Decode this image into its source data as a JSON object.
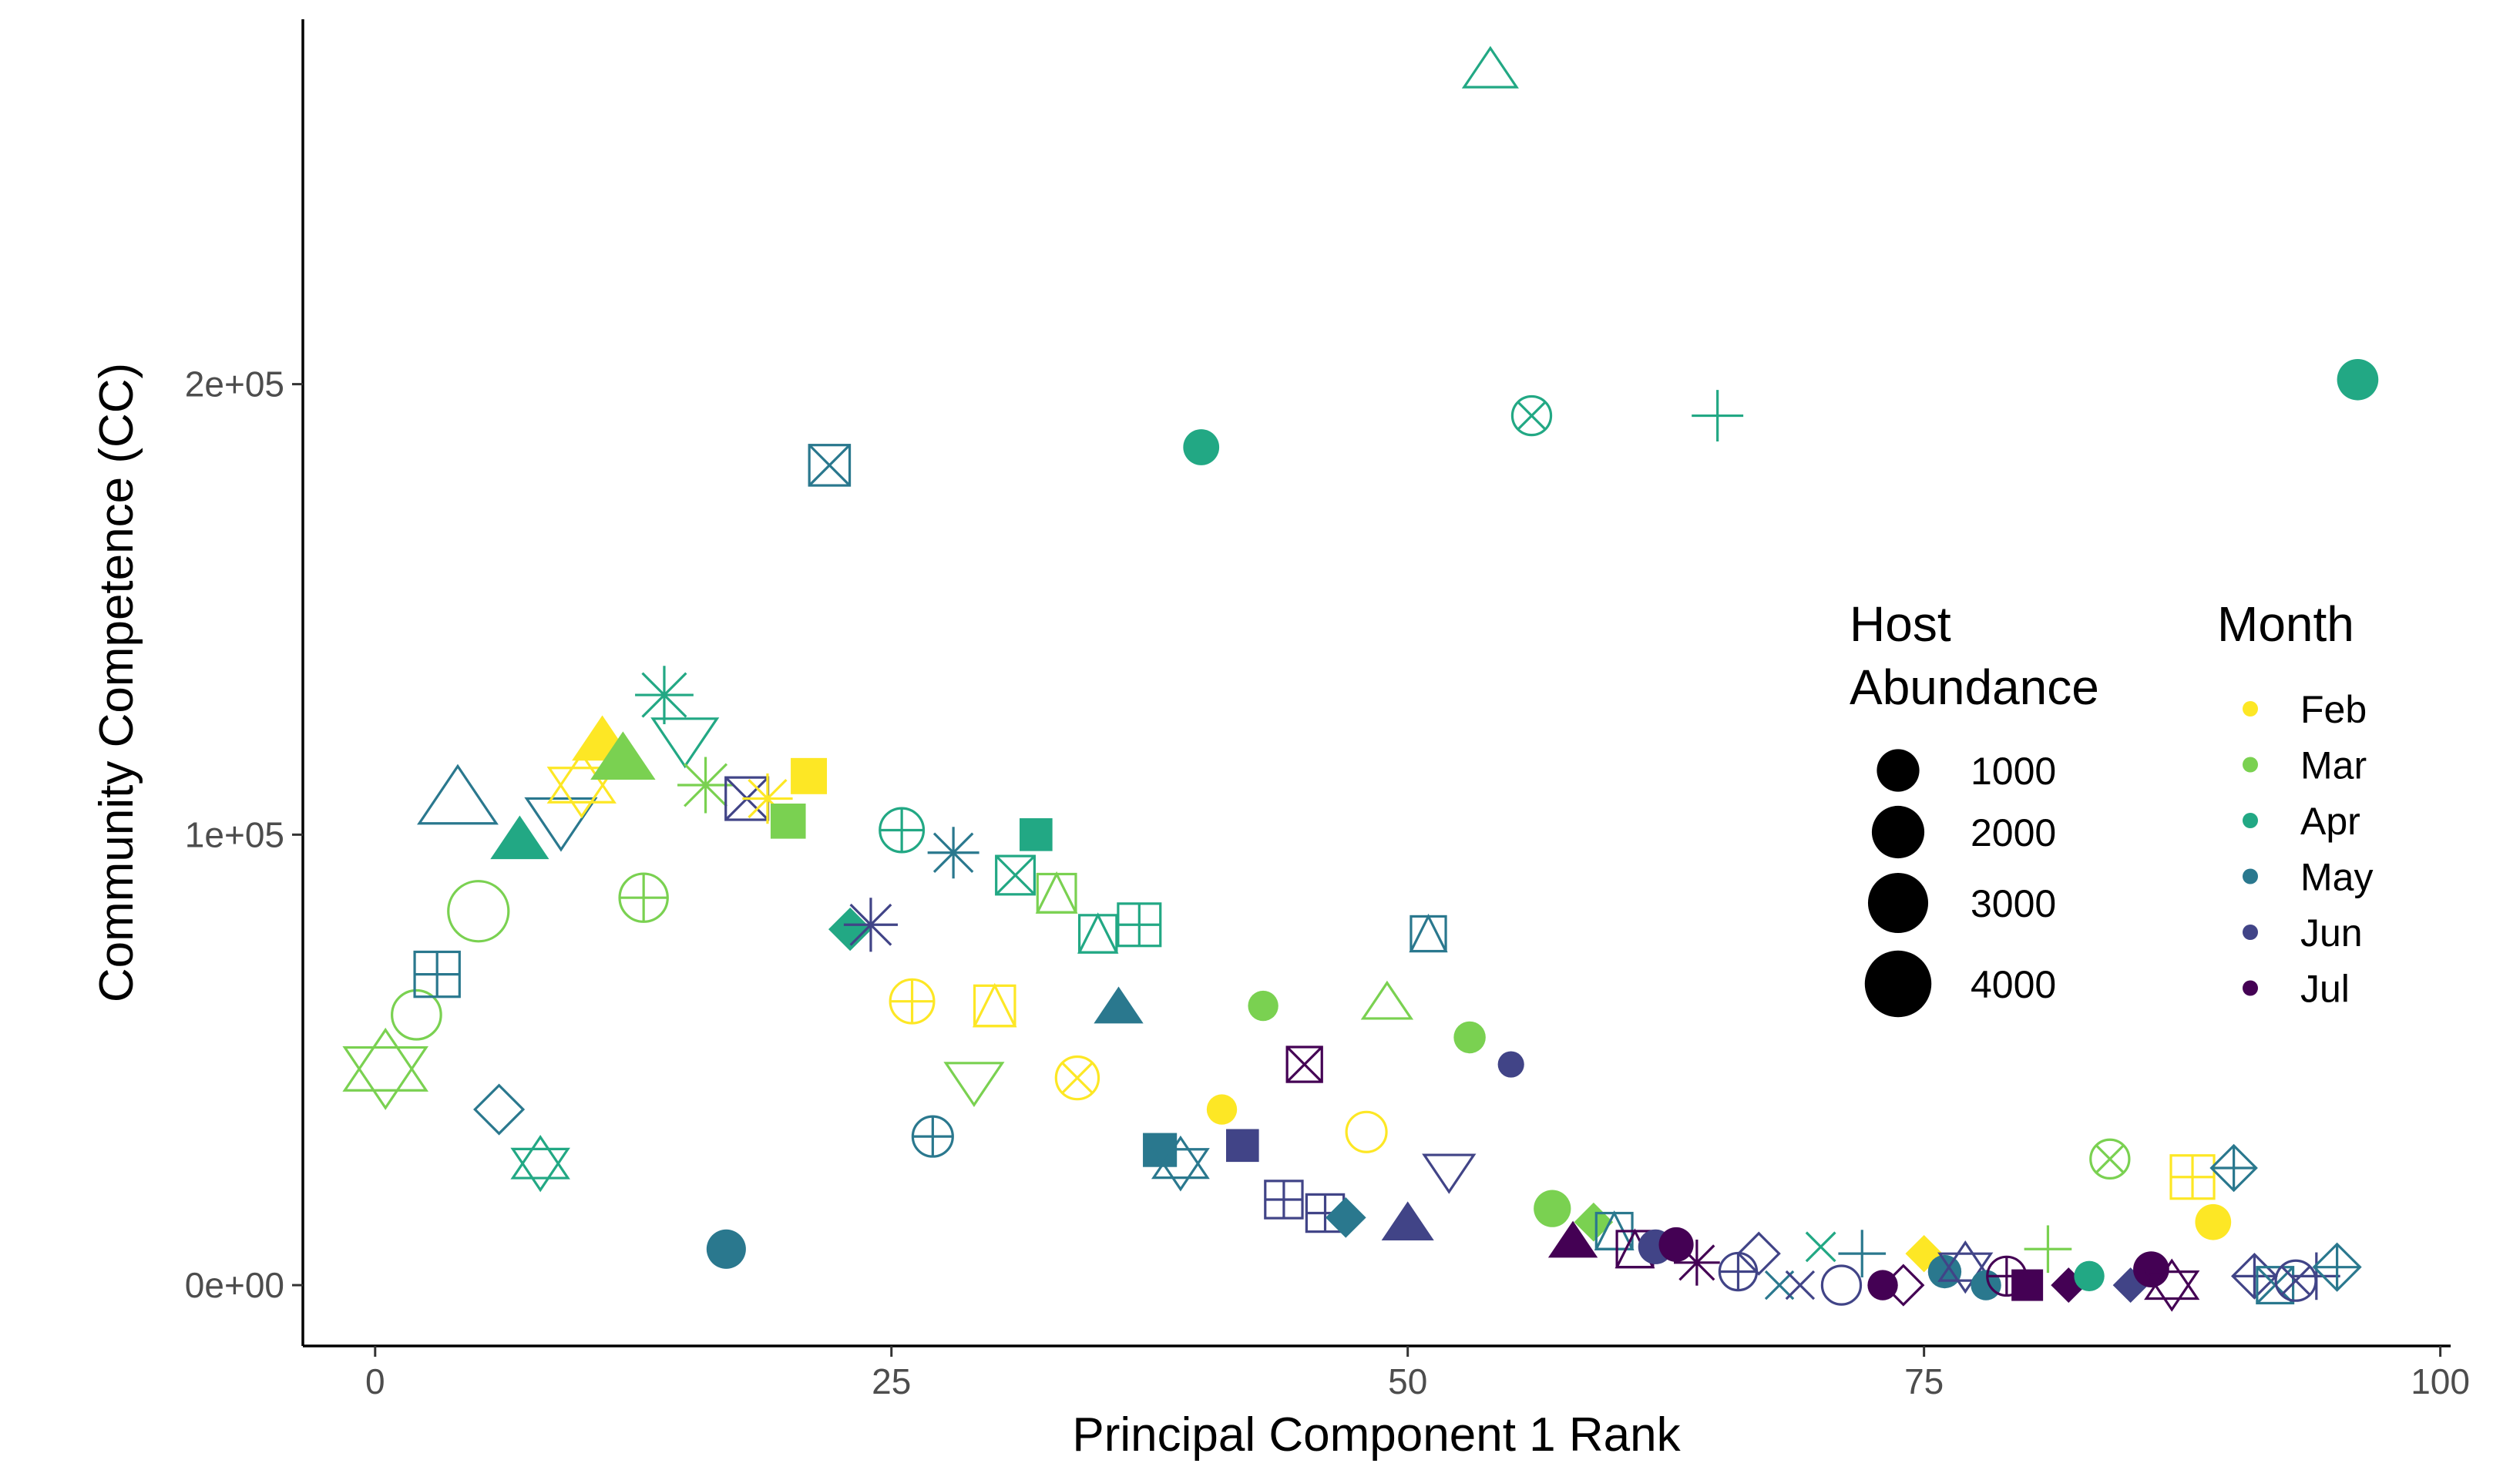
{
  "chart_data": {
    "type": "scatter",
    "title": "",
    "xlabel": "Principal Component 1 Rank",
    "ylabel": "Community Competence (CC)",
    "xlim": [
      -3.5,
      100.5
    ],
    "ylim": [
      -13500,
      281000
    ],
    "x_ticks": [
      0,
      25,
      50,
      75,
      100
    ],
    "x_tick_labels": [
      "0",
      "25",
      "50",
      "75",
      "100"
    ],
    "y_ticks": [
      0,
      100000,
      200000
    ],
    "y_tick_labels": [
      "0e+00",
      "1e+05",
      "2e+05"
    ],
    "grid": false,
    "legend_placement": "right-inside",
    "size_legend": {
      "title_lines": [
        "Host",
        "Abundance"
      ],
      "entries": [
        {
          "label": "1000",
          "value": 1000
        },
        {
          "label": "2000",
          "value": 2000
        },
        {
          "label": "3000",
          "value": 3000
        },
        {
          "label": "4000",
          "value": 4000
        }
      ]
    },
    "color_legend": {
      "title": "Month",
      "entries": [
        {
          "label": "Feb",
          "color": "#FDE725"
        },
        {
          "label": "Mar",
          "color": "#7AD151"
        },
        {
          "label": "Apr",
          "color": "#22A884"
        },
        {
          "label": "May",
          "color": "#2A788E"
        },
        {
          "label": "Jun",
          "color": "#414487"
        },
        {
          "label": "Jul",
          "color": "#440154"
        }
      ]
    },
    "points": [
      {
        "x": 0.5,
        "y": 48000,
        "month": "Mar",
        "shape": "hexagram",
        "abundance": 4200
      },
      {
        "x": 2,
        "y": 60000,
        "month": "Mar",
        "shape": "circle-open",
        "abundance": 1600
      },
      {
        "x": 3,
        "y": 69000,
        "month": "May",
        "shape": "square-plus",
        "abundance": 1700
      },
      {
        "x": 4,
        "y": 107000,
        "month": "May",
        "shape": "triangle-open",
        "abundance": 3600
      },
      {
        "x": 5,
        "y": 83000,
        "month": "Mar",
        "shape": "circle-open",
        "abundance": 3000
      },
      {
        "x": 6,
        "y": 39000,
        "month": "May",
        "shape": "diamond-open",
        "abundance": 1300
      },
      {
        "x": 7,
        "y": 98000,
        "month": "Apr",
        "shape": "triangle-filled",
        "abundance": 1600
      },
      {
        "x": 8,
        "y": 27000,
        "month": "Apr",
        "shape": "hexagram",
        "abundance": 1300
      },
      {
        "x": 9,
        "y": 104000,
        "month": "May",
        "shape": "triangle-down",
        "abundance": 2600
      },
      {
        "x": 10,
        "y": 111000,
        "month": "Feb",
        "shape": "hexagram",
        "abundance": 2200
      },
      {
        "x": 11,
        "y": 120000,
        "month": "Feb",
        "shape": "triangle-filled",
        "abundance": 1800
      },
      {
        "x": 12,
        "y": 116000,
        "month": "Mar",
        "shape": "triangle-filled",
        "abundance": 2200
      },
      {
        "x": 13,
        "y": 86000,
        "month": "Mar",
        "shape": "circle-plus",
        "abundance": 1500
      },
      {
        "x": 14,
        "y": 131000,
        "month": "Apr",
        "shape": "asterisk",
        "abundance": 1800
      },
      {
        "x": 15,
        "y": 122000,
        "month": "Apr",
        "shape": "triangle-down",
        "abundance": 2100
      },
      {
        "x": 16,
        "y": 111000,
        "month": "Mar",
        "shape": "asterisk",
        "abundance": 1600
      },
      {
        "x": 17,
        "y": 8000,
        "month": "May",
        "shape": "circle-filled",
        "abundance": 1100
      },
      {
        "x": 18,
        "y": 108000,
        "month": "Jun",
        "shape": "square-x",
        "abundance": 1400
      },
      {
        "x": 19,
        "y": 108000,
        "month": "Feb",
        "shape": "asterisk",
        "abundance": 1100
      },
      {
        "x": 20,
        "y": 103000,
        "month": "Mar",
        "shape": "square-filled",
        "abundance": 900
      },
      {
        "x": 21,
        "y": 113000,
        "month": "Feb",
        "shape": "square-filled",
        "abundance": 1000
      },
      {
        "x": 22,
        "y": 182000,
        "month": "May",
        "shape": "square-x",
        "abundance": 1200
      },
      {
        "x": 23,
        "y": 79000,
        "month": "Apr",
        "shape": "diamond-filled",
        "abundance": 900
      },
      {
        "x": 24,
        "y": 80000,
        "month": "Jun",
        "shape": "asterisk",
        "abundance": 1400
      },
      {
        "x": 25.5,
        "y": 101000,
        "month": "Apr",
        "shape": "circle-plus",
        "abundance": 1100
      },
      {
        "x": 26,
        "y": 63000,
        "month": "Feb",
        "shape": "circle-plus",
        "abundance": 1100
      },
      {
        "x": 27,
        "y": 33000,
        "month": "May",
        "shape": "circle-plus",
        "abundance": 800
      },
      {
        "x": 28,
        "y": 96000,
        "month": "May",
        "shape": "asterisk",
        "abundance": 1200
      },
      {
        "x": 29,
        "y": 46000,
        "month": "Mar",
        "shape": "triangle-down",
        "abundance": 1400
      },
      {
        "x": 30,
        "y": 62000,
        "month": "Feb",
        "shape": "square-triangle",
        "abundance": 1200
      },
      {
        "x": 31,
        "y": 91000,
        "month": "Apr",
        "shape": "square-x",
        "abundance": 1000
      },
      {
        "x": 32,
        "y": 100000,
        "month": "Apr",
        "shape": "square-filled",
        "abundance": 700
      },
      {
        "x": 33,
        "y": 87000,
        "month": "Mar",
        "shape": "square-triangle",
        "abundance": 1000
      },
      {
        "x": 34,
        "y": 46000,
        "month": "Feb",
        "shape": "circle-x",
        "abundance": 1000
      },
      {
        "x": 35,
        "y": 78000,
        "month": "Apr",
        "shape": "square-triangle",
        "abundance": 900
      },
      {
        "x": 36,
        "y": 61000,
        "month": "May",
        "shape": "triangle-filled",
        "abundance": 900
      },
      {
        "x": 37,
        "y": 80000,
        "month": "Apr",
        "shape": "square-plus",
        "abundance": 1400
      },
      {
        "x": 38,
        "y": 30000,
        "month": "May",
        "shape": "square-filled",
        "abundance": 800
      },
      {
        "x": 39,
        "y": 27000,
        "month": "May",
        "shape": "hexagram",
        "abundance": 1200
      },
      {
        "x": 40,
        "y": 186000,
        "month": "Apr",
        "shape": "circle-filled",
        "abundance": 800
      },
      {
        "x": 41,
        "y": 39000,
        "month": "Feb",
        "shape": "circle-filled",
        "abundance": 400
      },
      {
        "x": 42,
        "y": 31000,
        "month": "Jun",
        "shape": "square-filled",
        "abundance": 700
      },
      {
        "x": 43,
        "y": 62000,
        "month": "Mar",
        "shape": "circle-filled",
        "abundance": 400
      },
      {
        "x": 44,
        "y": 19000,
        "month": "Jun",
        "shape": "square-plus",
        "abundance": 900
      },
      {
        "x": 45,
        "y": 49000,
        "month": "Jul",
        "shape": "square-x",
        "abundance": 700
      },
      {
        "x": 46,
        "y": 16000,
        "month": "Jun",
        "shape": "square-plus",
        "abundance": 900
      },
      {
        "x": 47,
        "y": 15000,
        "month": "May",
        "shape": "diamond-filled",
        "abundance": 700
      },
      {
        "x": 48,
        "y": 34000,
        "month": "Feb",
        "shape": "circle-open",
        "abundance": 800
      },
      {
        "x": 49,
        "y": 62000,
        "month": "Mar",
        "shape": "triangle-open",
        "abundance": 800
      },
      {
        "x": 50,
        "y": 13000,
        "month": "Jun",
        "shape": "triangle-filled",
        "abundance": 1100
      },
      {
        "x": 51,
        "y": 78000,
        "month": "May",
        "shape": "square-triangle",
        "abundance": 700
      },
      {
        "x": 52,
        "y": 26000,
        "month": "Jun",
        "shape": "triangle-down",
        "abundance": 900
      },
      {
        "x": 53,
        "y": 55000,
        "month": "Mar",
        "shape": "circle-filled",
        "abundance": 500
      },
      {
        "x": 54,
        "y": 269000,
        "month": "Apr",
        "shape": "triangle-open",
        "abundance": 1100
      },
      {
        "x": 55,
        "y": 49000,
        "month": "Jun",
        "shape": "circle-filled",
        "abundance": 200
      },
      {
        "x": 56,
        "y": 193000,
        "month": "Apr",
        "shape": "circle-x",
        "abundance": 700
      },
      {
        "x": 57,
        "y": 17000,
        "month": "Mar",
        "shape": "circle-filled",
        "abundance": 900
      },
      {
        "x": 58,
        "y": 9000,
        "month": "Jul",
        "shape": "triangle-filled",
        "abundance": 900
      },
      {
        "x": 59,
        "y": 14000,
        "month": "Mar",
        "shape": "diamond-filled",
        "abundance": 600
      },
      {
        "x": 60,
        "y": 12000,
        "month": "May",
        "shape": "square-triangle",
        "abundance": 800
      },
      {
        "x": 61,
        "y": 8000,
        "month": "Jul",
        "shape": "square-triangle",
        "abundance": 800
      },
      {
        "x": 62,
        "y": 8500,
        "month": "Jun",
        "shape": "circle-filled",
        "abundance": 700
      },
      {
        "x": 63,
        "y": 9000,
        "month": "Jul",
        "shape": "circle-filled",
        "abundance": 700
      },
      {
        "x": 64,
        "y": 5000,
        "month": "Jul",
        "shape": "asterisk",
        "abundance": 800
      },
      {
        "x": 65,
        "y": 193000,
        "month": "Apr",
        "shape": "plus",
        "abundance": 1200
      },
      {
        "x": 66,
        "y": 3000,
        "month": "Jun",
        "shape": "circle-plus",
        "abundance": 600
      },
      {
        "x": 67,
        "y": 7000,
        "month": "Jun",
        "shape": "diamond-open",
        "abundance": 700
      },
      {
        "x": 68,
        "y": 0,
        "month": "May",
        "shape": "x",
        "abundance": 600
      },
      {
        "x": 69,
        "y": 0,
        "month": "Jun",
        "shape": "x",
        "abundance": 600
      },
      {
        "x": 70,
        "y": 8500,
        "month": "Apr",
        "shape": "x",
        "abundance": 700
      },
      {
        "x": 71,
        "y": 0,
        "month": "Jun",
        "shape": "circle-open",
        "abundance": 700
      },
      {
        "x": 72,
        "y": 7000,
        "month": "May",
        "shape": "plus",
        "abundance": 900
      },
      {
        "x": 73,
        "y": 0,
        "month": "Jul",
        "shape": "circle-filled",
        "abundance": 400
      },
      {
        "x": 74,
        "y": 0,
        "month": "Jul",
        "shape": "diamond-open",
        "abundance": 600
      },
      {
        "x": 75,
        "y": 7000,
        "month": "Feb",
        "shape": "diamond-filled",
        "abundance": 500
      },
      {
        "x": 76,
        "y": 3000,
        "month": "May",
        "shape": "circle-filled",
        "abundance": 600
      },
      {
        "x": 77,
        "y": 4000,
        "month": "Jun",
        "shape": "hexagram",
        "abundance": 1000
      },
      {
        "x": 78,
        "y": 0,
        "month": "May",
        "shape": "circle-filled",
        "abundance": 400
      },
      {
        "x": 79,
        "y": 2000,
        "month": "Jul",
        "shape": "circle-plus",
        "abundance": 700
      },
      {
        "x": 80,
        "y": 0,
        "month": "Jul",
        "shape": "square-filled",
        "abundance": 600
      },
      {
        "x": 81,
        "y": 8000,
        "month": "Mar",
        "shape": "plus",
        "abundance": 900
      },
      {
        "x": 82,
        "y": 0,
        "month": "Jul",
        "shape": "diamond-filled",
        "abundance": 400
      },
      {
        "x": 83,
        "y": 2000,
        "month": "Apr",
        "shape": "circle-filled",
        "abundance": 400
      },
      {
        "x": 84,
        "y": 28000,
        "month": "Mar",
        "shape": "circle-x",
        "abundance": 700
      },
      {
        "x": 85,
        "y": 0,
        "month": "Jun",
        "shape": "diamond-filled",
        "abundance": 400
      },
      {
        "x": 86,
        "y": 3500,
        "month": "Jul",
        "shape": "circle-filled",
        "abundance": 800
      },
      {
        "x": 87,
        "y": 0,
        "month": "Jul",
        "shape": "hexagram",
        "abundance": 1000
      },
      {
        "x": 88,
        "y": 24000,
        "month": "Feb",
        "shape": "square-plus",
        "abundance": 1500
      },
      {
        "x": 89,
        "y": 14000,
        "month": "Feb",
        "shape": "circle-filled",
        "abundance": 800
      },
      {
        "x": 90,
        "y": 26000,
        "month": "May",
        "shape": "diamond-plus",
        "abundance": 1000
      },
      {
        "x": 91,
        "y": 2000,
        "month": "Jun",
        "shape": "diamond-plus",
        "abundance": 900
      },
      {
        "x": 92,
        "y": 0,
        "month": "May",
        "shape": "square-x",
        "abundance": 800
      },
      {
        "x": 93,
        "y": 1000,
        "month": "Jun",
        "shape": "circle-x",
        "abundance": 800
      },
      {
        "x": 94,
        "y": 2000,
        "month": "Jun",
        "shape": "plus",
        "abundance": 900
      },
      {
        "x": 95,
        "y": 4000,
        "month": "May",
        "shape": "diamond-plus",
        "abundance": 1100
      },
      {
        "x": 96,
        "y": 201000,
        "month": "Apr",
        "shape": "circle-filled",
        "abundance": 1300
      }
    ]
  }
}
